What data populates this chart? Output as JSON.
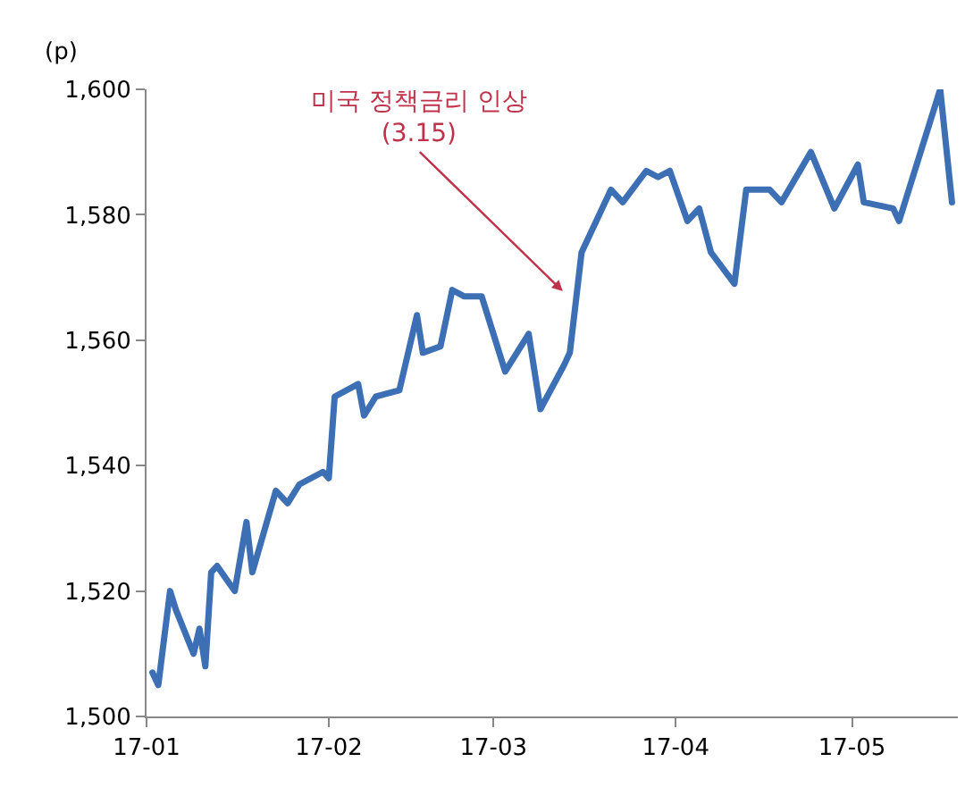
{
  "chart_data": {
    "type": "line",
    "ylabel": "(p)",
    "x": [
      "--01-02",
      "--01-03",
      "--01-05",
      "--01-06",
      "--01-09",
      "--01-10",
      "--01-11",
      "--01-12",
      "--01-13",
      "--01-16",
      "--01-18",
      "--01-19",
      "--01-23",
      "--01-25",
      "--01-27",
      "--01-31",
      "--02-01",
      "--02-02",
      "--02-06",
      "--02-07",
      "--02-09",
      "--02-13",
      "--02-16",
      "--02-17",
      "--02-20",
      "--02-22",
      "--02-24",
      "--02-27",
      "--03-03",
      "--03-07",
      "--03-09",
      "--03-13",
      "--03-14",
      "--03-16",
      "--03-21",
      "--03-23",
      "--03-27",
      "--03-29",
      "--03-31",
      "--04-03",
      "--04-05",
      "--04-07",
      "--04-11",
      "--04-13",
      "--04-17",
      "--04-19",
      "--04-24",
      "--04-28",
      "--05-02",
      "--05-03",
      "--05-08",
      "--05-09",
      "--05-16",
      "--05-18"
    ],
    "series": [
      {
        "color": "#3c6fb4",
        "values": [
          1507,
          1505,
          1520,
          1517,
          1510,
          1514,
          1508,
          1523,
          1524,
          1520,
          1531,
          1523,
          1536,
          1534,
          1537,
          1539,
          1538,
          1551,
          1553,
          1548,
          1551,
          1552,
          1564,
          1558,
          1559,
          1568,
          1567,
          1567,
          1555,
          1561,
          1549,
          1556,
          1558,
          1574,
          1584,
          1582,
          1587,
          1586,
          1587,
          1579,
          1581,
          1574,
          1569,
          1584,
          1584,
          1582,
          1590,
          1581,
          1588,
          1582,
          1581,
          1579,
          1600,
          1582
        ]
      }
    ],
    "xlim": [
      "--01-01",
      "--05-19"
    ],
    "xticks": [
      {
        "value": "--01-01",
        "label": "17-01"
      },
      {
        "value": "--02-01",
        "label": "17-02"
      },
      {
        "value": "--03-01",
        "label": "17-03"
      },
      {
        "value": "--04-01",
        "label": "17-04"
      },
      {
        "value": "--05-01",
        "label": "17-05"
      }
    ],
    "ylim": [
      1500,
      1600
    ],
    "yticks": [
      {
        "value": 1500,
        "label": "1,500"
      },
      {
        "value": 1520,
        "label": "1,520"
      },
      {
        "value": 1540,
        "label": "1,540"
      },
      {
        "value": 1560,
        "label": "1,560"
      },
      {
        "value": 1580,
        "label": "1,580"
      },
      {
        "value": 1600,
        "label": "1,600"
      }
    ],
    "annotations": [
      "미국 정책금리 인상\n(3.15)"
    ],
    "grid": false,
    "marker": "none",
    "line_style": "solid"
  }
}
